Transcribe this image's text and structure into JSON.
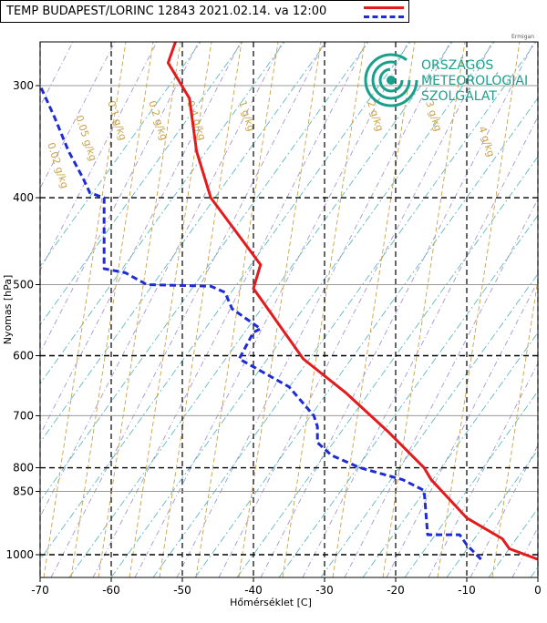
{
  "legend": {
    "title": "TEMP BUDAPEST/LORINC  12843 2021.02.14.  va  12:00"
  },
  "logo": {
    "line1": "ORSZÁGOS",
    "line2": "METEOROLÓGIAI",
    "line3": "SZOLGÁLAT",
    "small": "Ermigan"
  },
  "colors": {
    "temperature": "#e41a1c",
    "dewpoint": "#1f2bd6",
    "mixing_ratio": "#c9a24a",
    "dry_adiabat": "#8e7cc3",
    "moist_adiabat": "#3aa7b0",
    "logo": "#1aa08a"
  },
  "chart_data": {
    "type": "line",
    "title": "TEMP BUDAPEST/LORINC  12843 2021.02.14.  va  12:00",
    "xlabel": "Hőmérséklet [C]",
    "ylabel": "Nyomas [hPa]",
    "x_scale": "linear",
    "y_scale": "log (pressure, inverted)",
    "xlim": [
      -70,
      0
    ],
    "ylim": [
      1040,
      250
    ],
    "x_ticks": [
      "-70",
      "-60",
      "-50",
      "-40",
      "-30",
      "-20",
      "-10",
      "0"
    ],
    "y_ticks": [
      "300",
      "400",
      "500",
      "600",
      "700",
      "800",
      "850",
      "1000"
    ],
    "grid": true,
    "mixing_ratio_labels": [
      "0.02 g/kg",
      "0.05 g/kg",
      "0.1 g/kg",
      "0.2 g/kg",
      "0.4 g/kg",
      "1 g/kg",
      "2 g/kg",
      "3 g/kg",
      "4 g/kg"
    ],
    "series": [
      {
        "name": "temperature",
        "style": "solid",
        "points": [
          [
            0,
            1012
          ],
          [
            -4,
            985
          ],
          [
            -5,
            960
          ],
          [
            -10,
            910
          ],
          [
            -15,
            825
          ],
          [
            -16,
            800
          ],
          [
            -21,
            730
          ],
          [
            -27,
            660
          ],
          [
            -33,
            605
          ],
          [
            -40,
            505
          ],
          [
            -39,
            475
          ],
          [
            -46,
            400
          ],
          [
            -48,
            355
          ],
          [
            -49,
            310
          ],
          [
            -52,
            283
          ],
          [
            -50,
            255
          ]
        ]
      },
      {
        "name": "dewpoint",
        "style": "dashed",
        "points": [
          [
            -8,
            1012
          ],
          [
            -10,
            975
          ],
          [
            -11,
            950
          ],
          [
            -15.5,
            950
          ],
          [
            -16,
            848
          ],
          [
            -19,
            825
          ],
          [
            -25,
            800
          ],
          [
            -29,
            775
          ],
          [
            -31,
            750
          ],
          [
            -31,
            720
          ],
          [
            -31.5,
            700
          ],
          [
            -35,
            650
          ],
          [
            -42,
            605
          ],
          [
            -40,
            565
          ],
          [
            -39,
            560
          ],
          [
            -43,
            532
          ],
          [
            -44,
            510
          ],
          [
            -46,
            502
          ],
          [
            -55,
            500
          ],
          [
            -58,
            485
          ],
          [
            -61,
            480
          ],
          [
            -61,
            400
          ],
          [
            -63,
            395
          ],
          [
            -64,
            380
          ],
          [
            -66,
            355
          ],
          [
            -68,
            325
          ],
          [
            -70,
            300
          ]
        ]
      }
    ]
  }
}
